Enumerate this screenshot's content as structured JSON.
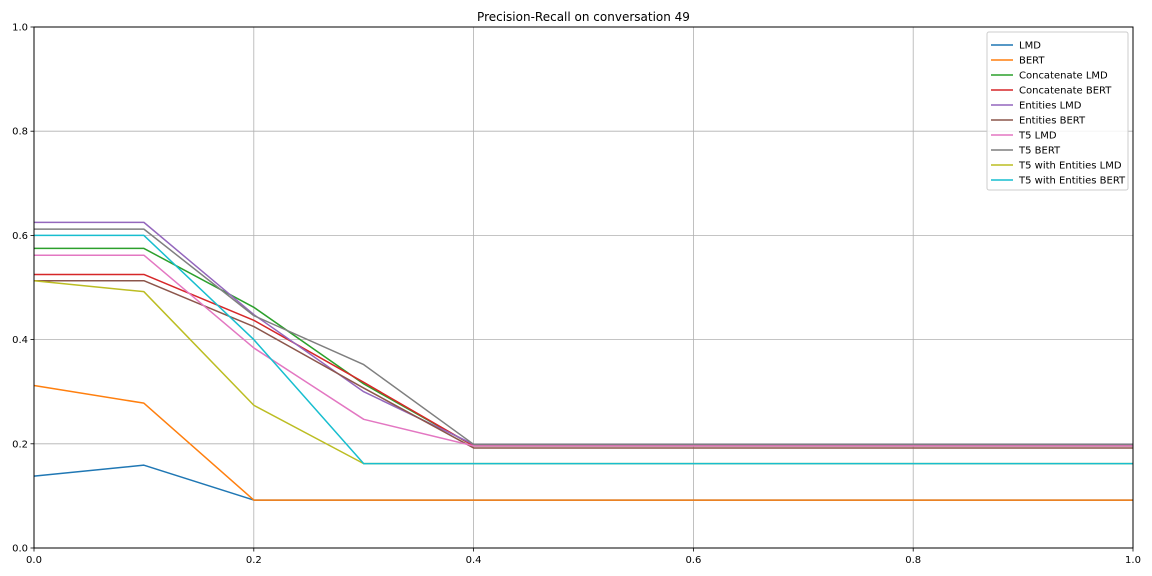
{
  "chart_data": {
    "type": "line",
    "title": "Precision-Recall on conversation 49",
    "xlabel": "",
    "ylabel": "",
    "xlim": [
      0.0,
      1.0
    ],
    "ylim": [
      0.0,
      1.0
    ],
    "x_ticks": [
      "0.0",
      "0.2",
      "0.4",
      "0.6",
      "0.8",
      "1.0"
    ],
    "y_ticks": [
      "0.0",
      "0.2",
      "0.4",
      "0.6",
      "0.8",
      "1.0"
    ],
    "grid": true,
    "legend_position": "top-right",
    "x": [
      0.0,
      0.1,
      0.2,
      0.3,
      0.4,
      0.5,
      0.6,
      0.7,
      0.8,
      0.9,
      1.0
    ],
    "series": [
      {
        "name": "LMD",
        "color": "#1f77b4",
        "values": [
          0.138,
          0.159,
          0.092,
          0.092,
          0.092,
          0.092,
          0.092,
          0.092,
          0.092,
          0.092,
          0.092
        ]
      },
      {
        "name": "BERT",
        "color": "#ff7f0e",
        "values": [
          0.312,
          0.278,
          0.092,
          0.092,
          0.092,
          0.092,
          0.092,
          0.092,
          0.092,
          0.092,
          0.092
        ]
      },
      {
        "name": "Concatenate LMD",
        "color": "#2ca02c",
        "values": [
          0.575,
          0.575,
          0.462,
          0.315,
          0.196,
          0.196,
          0.196,
          0.196,
          0.196,
          0.196,
          0.196
        ]
      },
      {
        "name": "Concatenate BERT",
        "color": "#d62728",
        "values": [
          0.525,
          0.525,
          0.437,
          0.318,
          0.196,
          0.196,
          0.196,
          0.196,
          0.196,
          0.196,
          0.196
        ]
      },
      {
        "name": "Entities LMD",
        "color": "#9467bd",
        "values": [
          0.625,
          0.625,
          0.448,
          0.3,
          0.199,
          0.199,
          0.199,
          0.199,
          0.199,
          0.199,
          0.199
        ]
      },
      {
        "name": "Entities BERT",
        "color": "#8c564b",
        "values": [
          0.513,
          0.513,
          0.425,
          0.307,
          0.192,
          0.192,
          0.192,
          0.192,
          0.192,
          0.192,
          0.192
        ]
      },
      {
        "name": "T5 LMD",
        "color": "#e377c2",
        "values": [
          0.562,
          0.562,
          0.384,
          0.247,
          0.196,
          0.196,
          0.196,
          0.196,
          0.196,
          0.196,
          0.196
        ]
      },
      {
        "name": "T5 BERT",
        "color": "#7f7f7f",
        "values": [
          0.612,
          0.612,
          0.446,
          0.352,
          0.199,
          0.199,
          0.199,
          0.199,
          0.199,
          0.199,
          0.199
        ]
      },
      {
        "name": "T5 with Entities LMD",
        "color": "#bcbd22",
        "values": [
          0.513,
          0.492,
          0.274,
          0.162,
          0.162,
          0.162,
          0.162,
          0.162,
          0.162,
          0.162,
          0.162
        ]
      },
      {
        "name": "T5 with Entities BERT",
        "color": "#17becf",
        "values": [
          0.6,
          0.6,
          0.4,
          0.162,
          0.162,
          0.162,
          0.162,
          0.162,
          0.162,
          0.162,
          0.162
        ]
      }
    ]
  }
}
